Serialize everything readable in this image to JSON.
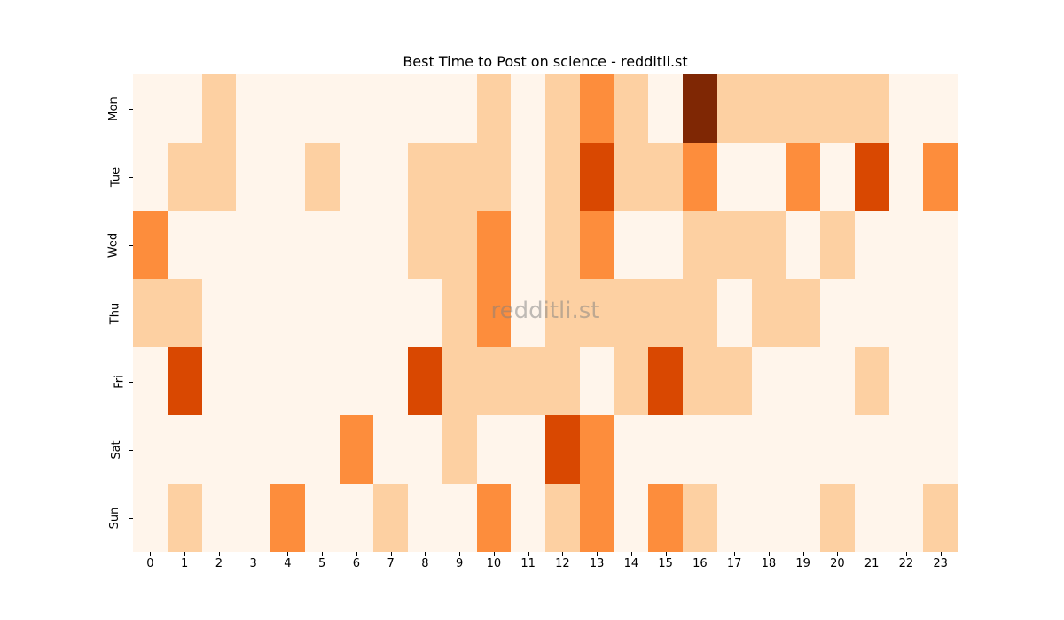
{
  "chart_data": {
    "type": "heatmap",
    "title": "Best Time to Post on science - redditli.st",
    "xlabel": "",
    "ylabel": "",
    "x": [
      "0",
      "1",
      "2",
      "3",
      "4",
      "5",
      "6",
      "7",
      "8",
      "9",
      "10",
      "11",
      "12",
      "13",
      "14",
      "15",
      "16",
      "17",
      "18",
      "19",
      "20",
      "21",
      "22",
      "23"
    ],
    "y": [
      "Mon",
      "Tue",
      "Wed",
      "Thu",
      "Fri",
      "Sat",
      "Sun"
    ],
    "colormap": "Oranges",
    "levels": [
      "#fff5eb",
      "#fdd0a2",
      "#fd8d3c",
      "#d94801",
      "#7f2704"
    ],
    "values": [
      [
        0,
        0,
        1,
        0,
        0,
        0,
        0,
        0,
        0,
        0,
        1,
        0,
        1,
        2,
        1,
        0,
        4,
        1,
        1,
        1,
        1,
        1,
        0,
        0
      ],
      [
        0,
        1,
        1,
        0,
        0,
        1,
        0,
        0,
        1,
        1,
        1,
        0,
        1,
        3,
        1,
        1,
        2,
        0,
        0,
        2,
        0,
        3,
        0,
        2
      ],
      [
        2,
        0,
        0,
        0,
        0,
        0,
        0,
        0,
        1,
        1,
        2,
        0,
        1,
        2,
        0,
        0,
        1,
        1,
        1,
        0,
        1,
        0,
        0,
        0
      ],
      [
        1,
        1,
        0,
        0,
        0,
        0,
        0,
        0,
        0,
        1,
        2,
        0,
        1,
        1,
        1,
        1,
        1,
        0,
        1,
        1,
        0,
        0,
        0,
        0
      ],
      [
        0,
        3,
        0,
        0,
        0,
        0,
        0,
        0,
        3,
        1,
        1,
        1,
        1,
        0,
        1,
        3,
        1,
        1,
        0,
        0,
        0,
        1,
        0,
        0
      ],
      [
        0,
        0,
        0,
        0,
        0,
        0,
        2,
        0,
        0,
        1,
        0,
        0,
        3,
        2,
        0,
        0,
        0,
        0,
        0,
        0,
        0,
        0,
        0,
        0
      ],
      [
        0,
        1,
        0,
        0,
        2,
        0,
        0,
        1,
        0,
        0,
        2,
        0,
        1,
        2,
        0,
        2,
        1,
        0,
        0,
        0,
        1,
        0,
        0,
        1
      ]
    ],
    "watermark": "redditli.st",
    "grid": false,
    "legend": "none"
  }
}
